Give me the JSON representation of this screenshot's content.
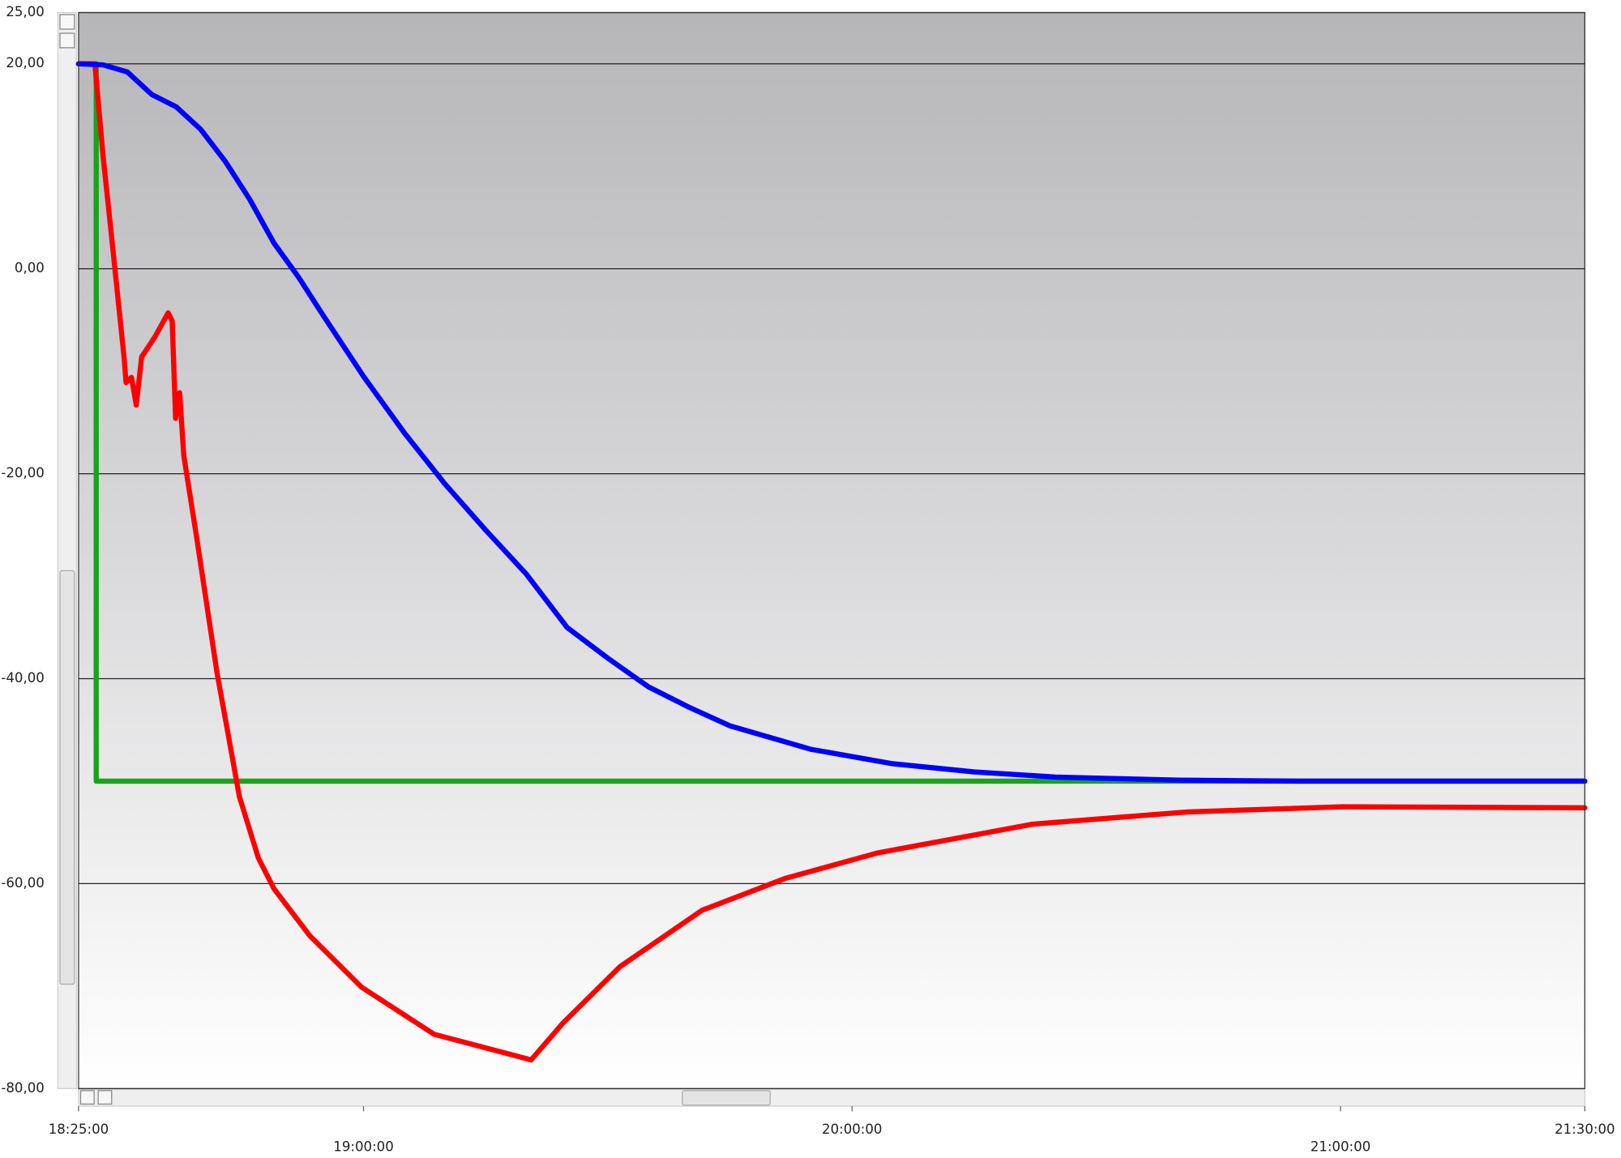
{
  "chart_data": {
    "type": "line",
    "ylim": [
      -80,
      25
    ],
    "yticks": [
      {
        "value": 25,
        "label": "25,00"
      },
      {
        "value": 20,
        "label": "20,00"
      },
      {
        "value": 0,
        "label": "0,00"
      },
      {
        "value": -20,
        "label": "-20,00"
      },
      {
        "value": -40,
        "label": "-40,00"
      },
      {
        "value": -60,
        "label": "-60,00"
      },
      {
        "value": -80,
        "label": "-80,00"
      }
    ],
    "xlim": [
      "18:25:00",
      "21:30:00"
    ],
    "xticks": [
      "18:25:00",
      "19:00:00",
      "20:00:00",
      "21:00:00",
      "21:30:00"
    ],
    "grid": true,
    "series": [
      {
        "color": "#1aa31a",
        "x": [
          "18:25:00",
          "18:27:10",
          "18:27:10",
          "21:30:00"
        ],
        "values": [
          20,
          20,
          -50,
          -50
        ]
      },
      {
        "color": "#ff0000",
        "x": [
          "18:25:00",
          "18:27:00",
          "18:28:00",
          "18:29:20",
          "18:30:35",
          "18:30:50",
          "18:31:30",
          "18:32:05",
          "18:32:45",
          "18:34:25",
          "18:36:00",
          "18:36:30",
          "18:36:55",
          "18:37:25",
          "18:37:55",
          "18:39:30",
          "18:42:00",
          "18:44:45",
          "18:47:05",
          "18:49:00",
          "18:53:25",
          "18:59:45",
          "19:08:40",
          "19:20:35",
          "19:24:30",
          "19:31:30",
          "19:41:35",
          "19:51:45",
          "20:03:10",
          "20:22:10",
          "20:41:15",
          "21:00:15",
          "21:30:00"
        ],
        "values": [
          20,
          20,
          11.1,
          1.0,
          -8.6,
          -11.1,
          -10.6,
          -13.3,
          -8.6,
          -6.6,
          -4.3,
          -5.1,
          -14.6,
          -12.1,
          -18.2,
          -26.2,
          -39.4,
          -51.5,
          -57.5,
          -60.5,
          -65.1,
          -70.1,
          -74.7,
          -77.2,
          -73.6,
          -68.1,
          -62.6,
          -59.5,
          -57.0,
          -54.2,
          -53.0,
          -52.5,
          -52.6
        ]
      },
      {
        "color": "#0000ff",
        "x": [
          "18:25:00",
          "18:28:00",
          "18:31:00",
          "18:34:00",
          "18:37:00",
          "18:40:00",
          "18:43:00",
          "18:46:00",
          "18:49:00",
          "18:52:00",
          "18:55:00",
          "19:00:00",
          "19:05:00",
          "19:10:00",
          "19:15:00",
          "19:20:00",
          "19:25:00",
          "19:30:00",
          "19:35:00",
          "19:40:00",
          "19:45:00",
          "19:55:00",
          "20:05:00",
          "20:15:00",
          "20:25:00",
          "20:40:00",
          "20:55:00",
          "21:30:00"
        ],
        "values": [
          20,
          19.9,
          19.2,
          17.0,
          15.8,
          13.6,
          10.5,
          6.8,
          2.5,
          -0.8,
          -4.5,
          -10.5,
          -16.0,
          -21.0,
          -25.5,
          -29.8,
          -35.0,
          -38.0,
          -40.8,
          -42.8,
          -44.6,
          -46.9,
          -48.3,
          -49.1,
          -49.6,
          -49.9,
          -50,
          -50
        ]
      }
    ]
  }
}
